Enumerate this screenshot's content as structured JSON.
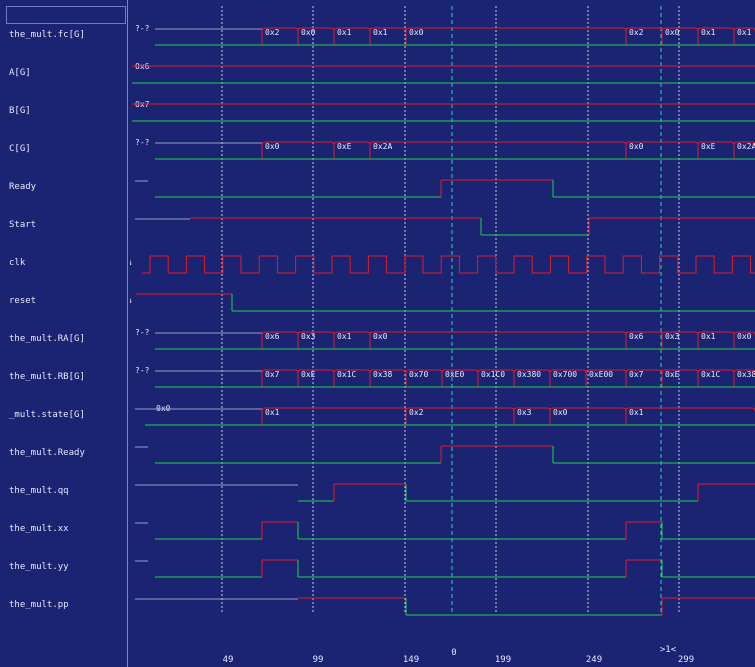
{
  "signals": [
    {
      "name": "the_mult.fc[G]",
      "type": "bus",
      "init": "?-?",
      "segs": [
        [
          262,
          "0x2"
        ],
        [
          298,
          "0x0"
        ],
        [
          334,
          "0x1"
        ],
        [
          370,
          "0x1"
        ],
        [
          406,
          "0x0"
        ],
        [
          626,
          "0x2"
        ],
        [
          662,
          "0x0"
        ],
        [
          698,
          "0x1"
        ],
        [
          734,
          "0x1"
        ]
      ]
    },
    {
      "name": "A[G]",
      "type": "bus",
      "init": "0x6",
      "segs": []
    },
    {
      "name": "B[G]",
      "type": "bus",
      "init": "0x7",
      "segs": []
    },
    {
      "name": "C[G]",
      "type": "bus",
      "init": "?-?",
      "segs": [
        [
          262,
          "0x0"
        ],
        [
          334,
          "0xE"
        ],
        [
          370,
          "0x2A"
        ],
        [
          626,
          "0x0"
        ],
        [
          698,
          "0xE"
        ],
        [
          734,
          "0x2A"
        ]
      ]
    },
    {
      "name": "Ready",
      "type": "bit",
      "init": "x",
      "edges": [
        [
          155,
          0
        ],
        [
          441,
          1
        ],
        [
          553,
          0
        ]
      ]
    },
    {
      "name": "Start",
      "type": "bit",
      "init": "x",
      "edges": [
        [
          190,
          1
        ],
        [
          481,
          0
        ],
        [
          589,
          1
        ]
      ]
    },
    {
      "name": "clk",
      "type": "clock",
      "init": "x",
      "start": 150,
      "period": 36.4
    },
    {
      "name": "reset",
      "type": "bit",
      "init": "x",
      "edges": [
        [
          136,
          1
        ],
        [
          232,
          0
        ]
      ]
    },
    {
      "name": "the_mult.RA[G]",
      "type": "bus",
      "init": "?-?",
      "segs": [
        [
          262,
          "0x6"
        ],
        [
          298,
          "0x3"
        ],
        [
          334,
          "0x1"
        ],
        [
          370,
          "0x0"
        ],
        [
          626,
          "0x6"
        ],
        [
          662,
          "0x3"
        ],
        [
          698,
          "0x1"
        ],
        [
          734,
          "0x0"
        ]
      ]
    },
    {
      "name": "the_mult.RB[G]",
      "type": "bus",
      "init": "?-?",
      "segs": [
        [
          262,
          "0x7"
        ],
        [
          298,
          "0xE"
        ],
        [
          334,
          "0x1C"
        ],
        [
          370,
          "0x38"
        ],
        [
          406,
          "0x70"
        ],
        [
          442,
          "0xE0"
        ],
        [
          478,
          "0x1C0"
        ],
        [
          514,
          "0x380"
        ],
        [
          550,
          "0x700"
        ],
        [
          586,
          "0xE00"
        ],
        [
          626,
          "0x7"
        ],
        [
          662,
          "0xE"
        ],
        [
          698,
          "0x1C"
        ],
        [
          734,
          "0x38"
        ]
      ]
    },
    {
      "name": "_mult.state[G]",
      "type": "bus",
      "init": "0x0",
      "segs": [
        [
          262,
          "0x1"
        ],
        [
          406,
          "0x2"
        ],
        [
          514,
          "0x3"
        ],
        [
          550,
          "0x0"
        ],
        [
          626,
          "0x1"
        ]
      ]
    },
    {
      "name": "the_mult.Ready",
      "type": "bit",
      "init": "x",
      "edges": [
        [
          155,
          0
        ],
        [
          441,
          1
        ],
        [
          553,
          0
        ]
      ]
    },
    {
      "name": "the_mult.qq",
      "type": "bit",
      "init": "x",
      "edges": [
        [
          298,
          0
        ],
        [
          334,
          1
        ],
        [
          406,
          0
        ],
        [
          698,
          1
        ]
      ]
    },
    {
      "name": "the_mult.xx",
      "type": "bit",
      "init": "x",
      "edges": [
        [
          155,
          0
        ],
        [
          262,
          1
        ],
        [
          298,
          0
        ],
        [
          626,
          1
        ],
        [
          662,
          0
        ]
      ]
    },
    {
      "name": "the_mult.yy",
      "type": "bit",
      "init": "x",
      "edges": [
        [
          155,
          0
        ],
        [
          262,
          1
        ],
        [
          298,
          0
        ],
        [
          626,
          1
        ],
        [
          662,
          0
        ]
      ]
    },
    {
      "name": "the_mult.pp",
      "type": "bit",
      "init": "x",
      "edges": [
        [
          298,
          1
        ],
        [
          406,
          0
        ],
        [
          662,
          1
        ]
      ]
    }
  ],
  "timescale": {
    "ticks": [
      {
        "x": 228,
        "label": "49"
      },
      {
        "x": 318,
        "label": "99"
      },
      {
        "x": 411,
        "label": "149"
      },
      {
        "x": 503,
        "label": "199"
      },
      {
        "x": 594,
        "label": "249"
      },
      {
        "x": 686,
        "label": "299"
      }
    ],
    "marker_zero": {
      "x": 454,
      "label": "0"
    },
    "cursor": {
      "x": 661,
      "label": ">1<"
    }
  },
  "colors": {
    "background": "#1a2472",
    "low": "#21d14a",
    "high": "#e01b2c",
    "text": "#e8e8ff",
    "grid": "#e8e8ff",
    "marker": "#3fc7c7",
    "unknown": "#9aa0c8"
  }
}
